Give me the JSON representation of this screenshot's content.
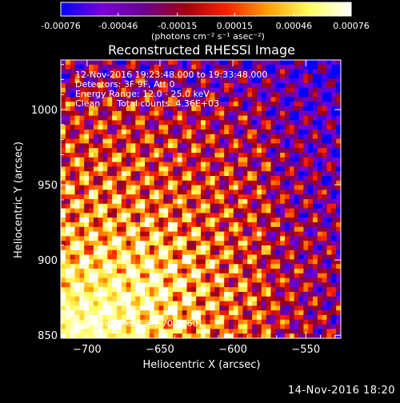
{
  "window": {
    "footer_timestamp": "14-Nov-2016 18:20"
  },
  "colorbar": {
    "ticks": [
      "-0.00076",
      "-0.00046",
      "-0.00015",
      "0.00015",
      "0.00046",
      "0.00076"
    ],
    "tick_values": [
      -0.00076,
      -0.00046,
      -0.00015,
      0.00015,
      0.00046,
      0.00076
    ],
    "range": [
      -0.00076,
      0.00076
    ],
    "unit_label": "(photons cm⁻² s⁻¹ asec⁻²)",
    "colors": [
      "#0000ff",
      "#7a00d8",
      "#6a0090",
      "#a00010",
      "#ff2000",
      "#ffa000",
      "#ffff60",
      "#ffffff"
    ]
  },
  "chart_data": {
    "type": "heatmap",
    "title": "Reconstructed RHESSI Image",
    "xlabel": "Heliocentric X (arcsec)",
    "ylabel": "Heliocentric Y (arcsec)",
    "xlim": [
      -718,
      -526
    ],
    "ylim": [
      848,
      1033
    ],
    "xticks": [
      -700,
      -650,
      -600,
      -550
    ],
    "yticks": [
      850,
      900,
      950,
      1000
    ],
    "grid": false,
    "annotations": [
      "12-Nov-2016 19:23:48.000 to 19:33:48.000",
      "Detectors: 3F 9F, Att 0",
      "Energy Range: 12.0 - 25.0 keV",
      "Clean      Total counts: 4.36E+03"
    ],
    "peak_label": "Position of Peak = [-704,860]",
    "peak": {
      "x": -704,
      "y": 860
    }
  }
}
